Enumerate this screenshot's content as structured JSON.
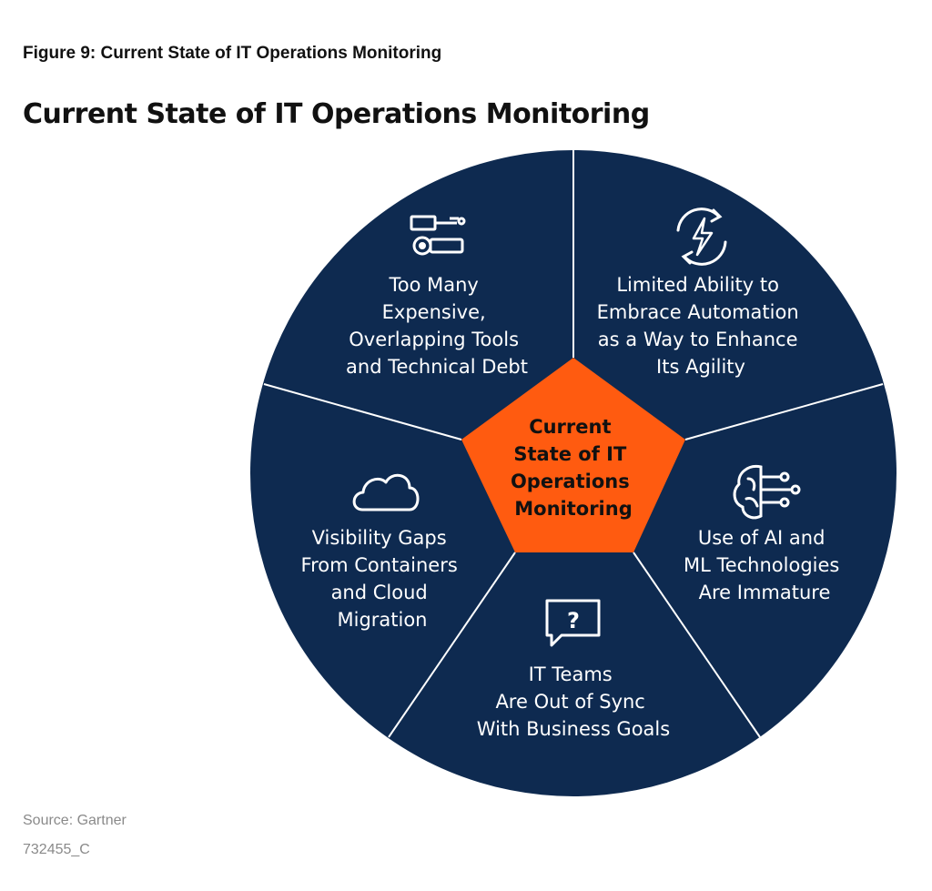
{
  "figure_caption": "Figure 9: Current State of IT Operations Monitoring",
  "diagram_title": "Current State of IT Operations Monitoring",
  "center": {
    "lines": [
      "Current",
      "State of IT",
      "Operations",
      "Monitoring"
    ]
  },
  "segments": [
    {
      "icon": "tools-icon",
      "lines": [
        "Too Many",
        "Expensive,",
        "Overlapping Tools",
        "and Technical Debt"
      ]
    },
    {
      "icon": "automation-icon",
      "lines": [
        "Limited Ability to",
        "Embrace Automation",
        "as a Way to Enhance",
        "Its Agility"
      ]
    },
    {
      "icon": "ai-brain-icon",
      "lines": [
        "Use of AI and",
        "ML Technologies",
        "Are Immature"
      ]
    },
    {
      "icon": "question-bubble-icon",
      "lines": [
        "IT Teams",
        "Are Out of Sync",
        "With Business Goals"
      ]
    },
    {
      "icon": "cloud-icon",
      "lines": [
        "Visibility Gaps",
        "From Containers",
        "and Cloud",
        "Migration"
      ]
    }
  ],
  "source": "Source: Gartner",
  "doc_id": "732455_C",
  "colors": {
    "wheel": "#0e2a50",
    "center": "#ff5b10",
    "divider": "#ffffff",
    "text_light": "#ffffff",
    "text_dark": "#111111"
  }
}
